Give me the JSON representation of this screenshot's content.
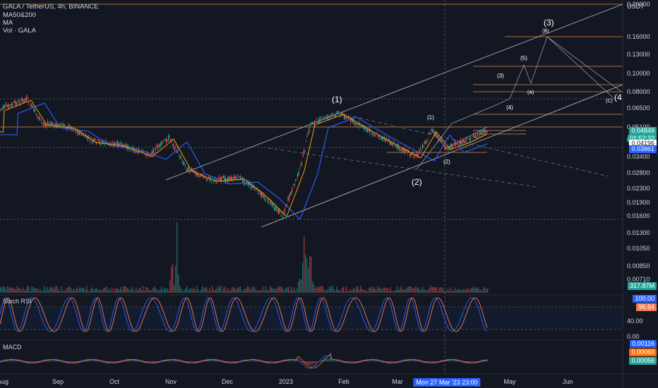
{
  "header": {
    "symbol_line": "GALA / TetherUS, 4h, BINANCE",
    "indicator1": "MA50&200",
    "indicator2": "MA",
    "indicator3": "Vol · GALA"
  },
  "price_axis": {
    "currency": "USDT",
    "ticks": [
      "0.20000",
      "0.16000",
      "0.13000",
      "0.10000",
      "0.08000",
      "0.06500",
      "0.05100",
      "0.04100",
      "0.03400",
      "0.02800",
      "0.02300",
      "0.01900",
      "0.01600",
      "0.01300",
      "0.01050",
      "0.00850",
      "0.00710"
    ]
  },
  "price_tags": {
    "last_price": "0.04849",
    "countdown": "01:52:32",
    "ma_fast": "0.04196",
    "ma_slow": "0.03861",
    "volume": "317.87M"
  },
  "stoch": {
    "title": "Stoch RSI",
    "k_value": "100.00",
    "d_value": "96.84",
    "ticks": [
      "40.00",
      "0.00"
    ]
  },
  "macd": {
    "title": "MACD",
    "macd_value": "0.00116",
    "signal_value": "0.00060",
    "hist_value": "0.00056"
  },
  "time_axis": {
    "labels": [
      "Aug",
      "Sep",
      "Oct",
      "Nov",
      "Dec",
      "2023",
      "Feb",
      "Mar",
      "Apr",
      "May",
      "Jun"
    ],
    "cursor_label": "Mon 27 Mar '23   23:00"
  },
  "wave_labels": {
    "big1": "(1)",
    "big2": "(2)",
    "big3": "(3)",
    "big4": "(4",
    "small1": "(1)",
    "small2": "(2)",
    "small3": "(3)",
    "small4": "(4)",
    "small5": "(5)",
    "a": "(A)",
    "b": "(B)",
    "c": "(C)"
  },
  "colors": {
    "background": "#131722",
    "up": "#26a69a",
    "down": "#ef5350",
    "ma_fast": "#ff9800",
    "ma_slow": "#2962ff",
    "level_line": "#c67c3a",
    "last_price_tag": "#26a69a",
    "ma_fast_tag": "#2962ff",
    "stoch_k": "#2962ff",
    "stoch_d": "#f57c50",
    "macd_tag": "#2962ff",
    "signal_tag": "#ff6d00",
    "hist_tag": "#26a69a"
  }
}
